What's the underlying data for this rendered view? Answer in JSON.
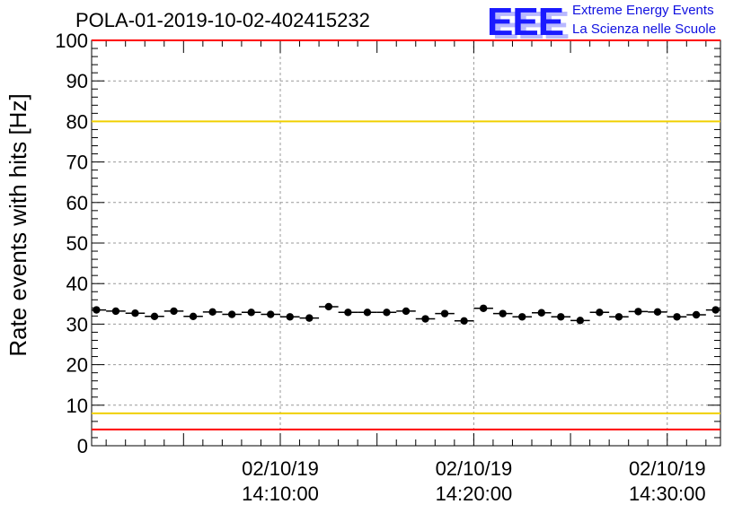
{
  "title": "POLA-01-2019-10-02-402415232",
  "logo": {
    "letters": "EEE",
    "line1": "Extreme Energy Events",
    "line2": "La Scienza nelle Scuole"
  },
  "colors": {
    "points": "#000000",
    "upper_red": "#ff0000",
    "lower_red": "#ff0000",
    "yellow": "#f0d000",
    "logo_blue": "#1a1aff"
  },
  "chart_data": {
    "type": "scatter",
    "title": "POLA-01-2019-10-02-402415232",
    "ylabel": "Rate events with hits [Hz]",
    "xlabel": "",
    "ylim": [
      0,
      100
    ],
    "xlim": [
      "14:00:30",
      "14:32:30"
    ],
    "yticks": [
      "0",
      "10",
      "20",
      "30",
      "40",
      "50",
      "60",
      "70",
      "80",
      "90",
      "100"
    ],
    "xticks": [
      {
        "date": "02/10/19",
        "time": "14:10:00"
      },
      {
        "date": "02/10/19",
        "time": "14:20:00"
      },
      {
        "date": "02/10/19",
        "time": "14:30:00"
      }
    ],
    "grid": true,
    "reference_lines": [
      {
        "y": 100,
        "color": "red"
      },
      {
        "y": 80,
        "color": "yellow"
      },
      {
        "y": 8,
        "color": "yellow"
      },
      {
        "y": 4,
        "color": "red"
      }
    ],
    "series": [
      {
        "x": [
          "14:00:30",
          "14:01:30",
          "14:02:30",
          "14:03:30",
          "14:04:30",
          "14:05:30",
          "14:06:30",
          "14:07:30",
          "14:08:30",
          "14:09:30",
          "14:10:30",
          "14:11:30",
          "14:12:30",
          "14:13:30",
          "14:14:30",
          "14:15:30",
          "14:16:30",
          "14:17:30",
          "14:18:30",
          "14:19:30",
          "14:20:30",
          "14:21:30",
          "14:22:30",
          "14:23:30",
          "14:24:30",
          "14:25:30",
          "14:26:30",
          "14:27:30",
          "14:28:30",
          "14:29:30",
          "14:30:30",
          "14:31:30",
          "14:32:30"
        ],
        "y": [
          33.5,
          33.2,
          32.7,
          31.9,
          33.2,
          31.9,
          33.0,
          32.4,
          32.9,
          32.4,
          31.8,
          31.5,
          34.3,
          32.9,
          32.9,
          32.9,
          33.2,
          31.3,
          32.6,
          30.8,
          33.9,
          32.6,
          31.8,
          32.8,
          31.8,
          30.9,
          32.9,
          31.8,
          33.1,
          33.0,
          31.8,
          32.3,
          33.5
        ]
      }
    ]
  }
}
